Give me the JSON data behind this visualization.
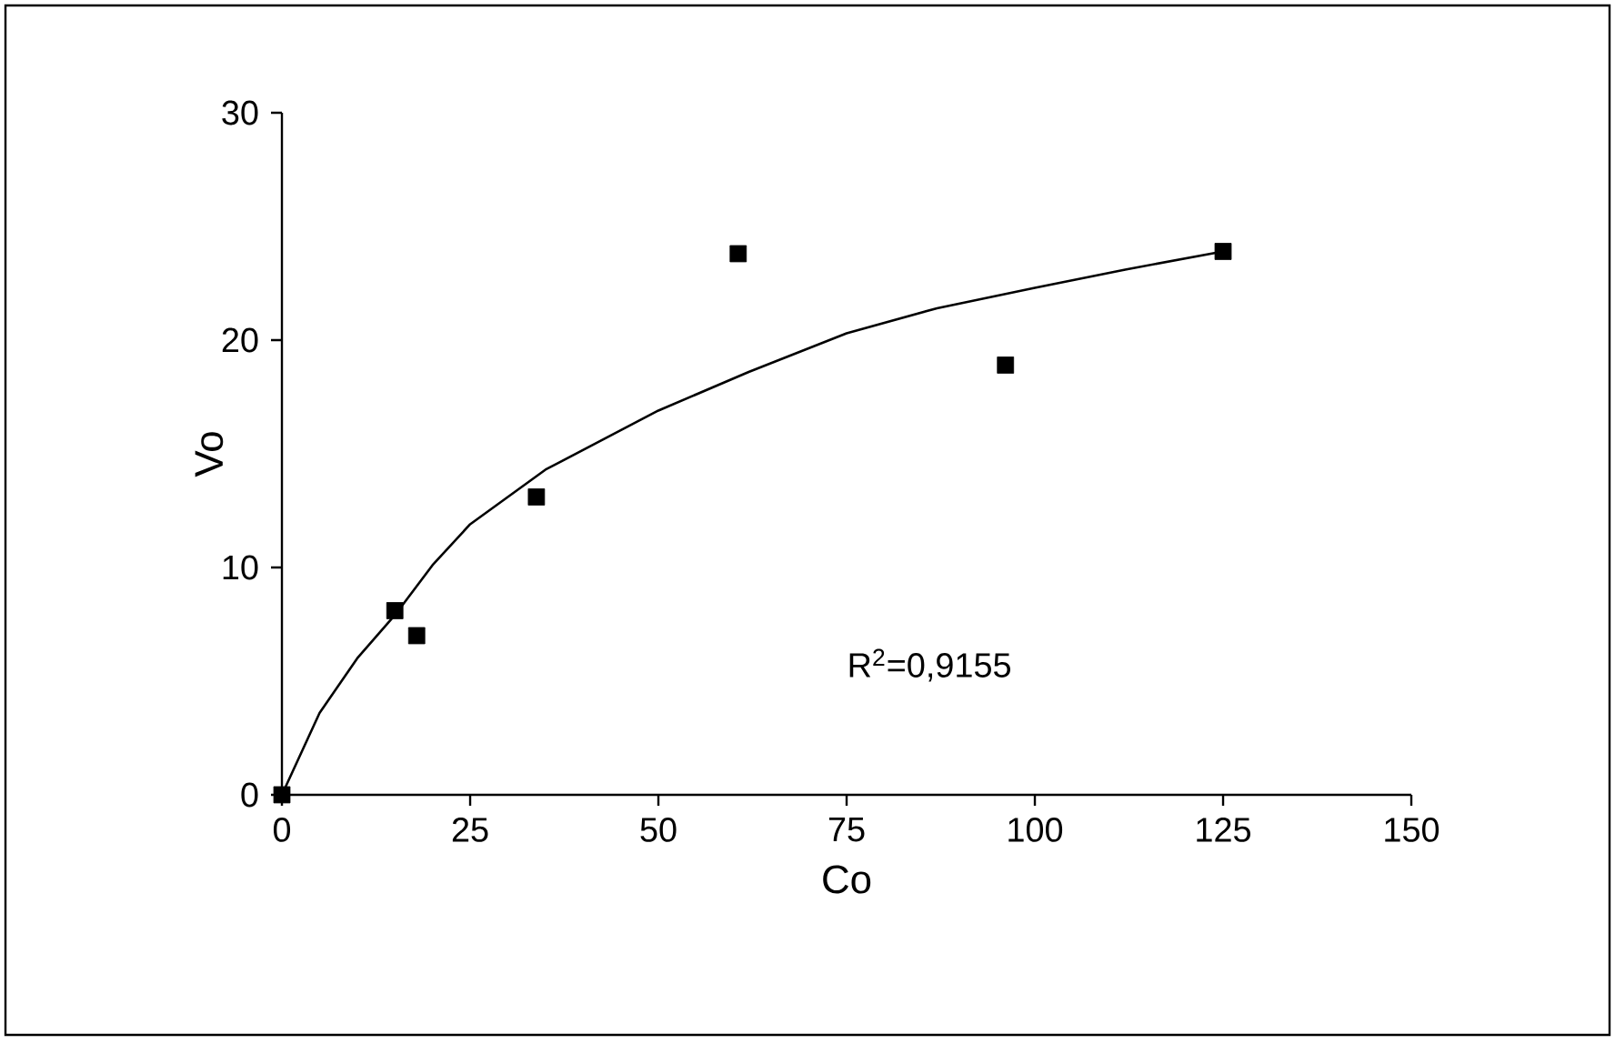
{
  "chart_data": {
    "type": "scatter",
    "xlabel": "Co",
    "ylabel": "Vo",
    "xlim": [
      0,
      150
    ],
    "ylim": [
      0,
      30
    ],
    "xticks": [
      0,
      25,
      50,
      75,
      100,
      125,
      150
    ],
    "yticks": [
      0,
      10,
      20,
      30
    ],
    "annotations": [
      "R$^{2}$=0,9155"
    ],
    "series": [
      {
        "color": "#000000",
        "marker": "square",
        "x": [
          0,
          15.0,
          17.9,
          33.8,
          60.6,
          96.1,
          125
        ],
        "values": [
          0,
          8.1,
          7.0,
          13.1,
          23.8,
          18.9,
          23.9
        ]
      },
      {
        "type": "line",
        "color": "#000000",
        "marker": "none",
        "line_style": "solid",
        "x": [
          0,
          5,
          10,
          15,
          20,
          25,
          35,
          50,
          62,
          75,
          87,
          100,
          112,
          125
        ],
        "values": [
          0,
          3.6,
          6.0,
          7.9,
          10.1,
          11.9,
          14.3,
          16.9,
          18.6,
          20.3,
          21.4,
          22.3,
          23.1,
          23.9
        ]
      }
    ]
  }
}
